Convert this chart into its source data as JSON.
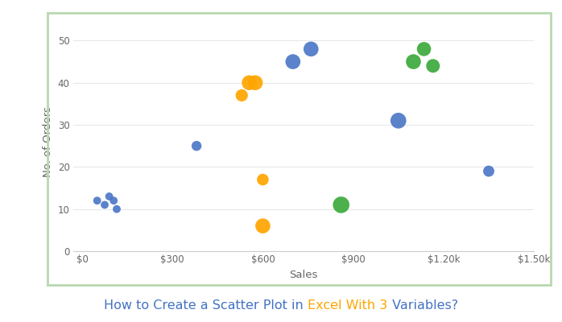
{
  "cosmetic_sales": [
    50,
    75,
    90,
    105,
    115,
    380,
    700,
    760,
    1050,
    1350
  ],
  "cosmetic_orders": [
    12,
    11,
    13,
    12,
    10,
    25,
    45,
    48,
    31,
    19
  ],
  "cosmetic_sizes": [
    50,
    50,
    50,
    50,
    50,
    80,
    180,
    180,
    200,
    100
  ],
  "electronics_sales": [
    530,
    555,
    575,
    600,
    600
  ],
  "electronics_orders": [
    37,
    40,
    40,
    17,
    6
  ],
  "electronics_sizes": [
    120,
    180,
    180,
    110,
    180
  ],
  "garments_sales": [
    860,
    1100,
    1135,
    1165
  ],
  "garments_orders": [
    11,
    45,
    48,
    44
  ],
  "garments_sizes": [
    220,
    180,
    160,
    150
  ],
  "cosmetic_color": "#4472C4",
  "electronics_color": "#FFA500",
  "garments_color": "#3DAA3D",
  "border_color": "#B8D8B0",
  "title_part1": "How to Create a Scatter Plot in ",
  "title_part2": "Excel With 3",
  "title_part3": " Variables?",
  "title_color1": "#4472C4",
  "title_color2": "#FFA500",
  "title_color3": "#4472C4",
  "title_fontsize": 11.5,
  "xlabel": "Sales",
  "ylabel": "No. of Orders",
  "xlim": [
    -30,
    1500
  ],
  "ylim": [
    0,
    52
  ],
  "xtick_vals": [
    0,
    300,
    600,
    900,
    1200,
    1500
  ],
  "xtick_labels": [
    "$0",
    "$300",
    "$600",
    "$900",
    "$1.20k",
    "$1.50k"
  ],
  "ytick_vals": [
    0,
    10,
    20,
    30,
    40,
    50
  ]
}
